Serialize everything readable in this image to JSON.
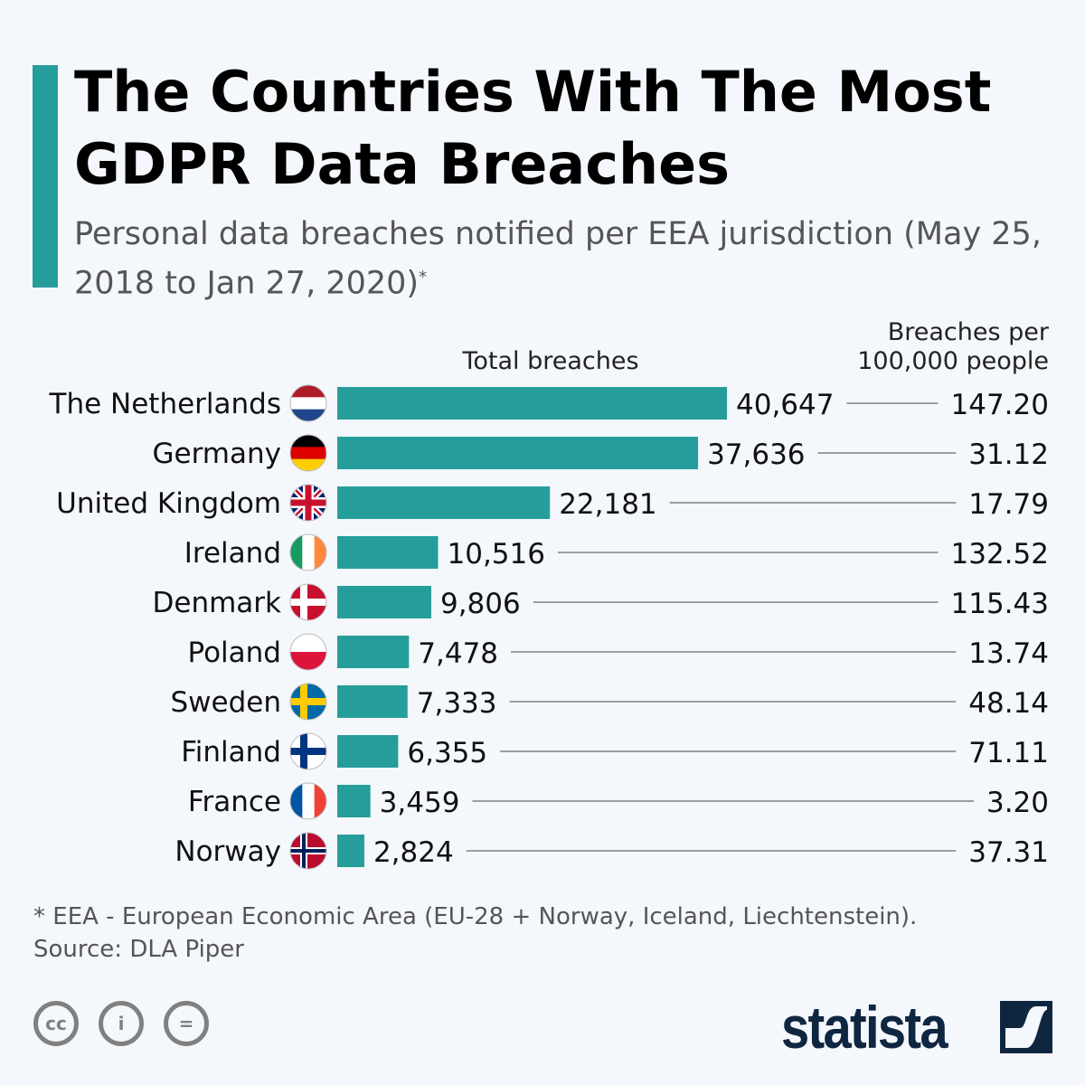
{
  "title": "The Countries With The Most GDPR Data Breaches",
  "subtitle": "Personal data breaches notified per EEA jurisdiction (May 25, 2018 to Jan 27, 2020)",
  "subtitle_mark": "*",
  "chart_data": {
    "type": "bar",
    "orientation": "horizontal",
    "column_headers": {
      "bars": "Total breaches",
      "right_line1": "Breaches per",
      "right_line2": "100,000 people"
    },
    "categories": [
      "The Netherlands",
      "Germany",
      "United Kingdom",
      "Ireland",
      "Denmark",
      "Poland",
      "Sweden",
      "Finland",
      "France",
      "Norway"
    ],
    "series": [
      {
        "name": "Total breaches",
        "values": [
          40647,
          37636,
          22181,
          10516,
          9806,
          7478,
          7333,
          6355,
          3459,
          2824
        ],
        "labels": [
          "40,647",
          "37,636",
          "22,181",
          "10,516",
          "9,806",
          "7,478",
          "7,333",
          "6,355",
          "3,459",
          "2,824"
        ]
      },
      {
        "name": "Breaches per 100,000 people",
        "values": [
          147.2,
          31.12,
          17.79,
          132.52,
          115.43,
          13.74,
          48.14,
          71.11,
          3.2,
          37.31
        ],
        "labels": [
          "147.20",
          "31.12",
          "17.79",
          "132.52",
          "115.43",
          "13.74",
          "48.14",
          "71.11",
          "3.20",
          "37.31"
        ]
      }
    ],
    "flags": [
      "nl-flag-icon",
      "de-flag-icon",
      "gb-flag-icon",
      "ie-flag-icon",
      "dk-flag-icon",
      "pl-flag-icon",
      "se-flag-icon",
      "fi-flag-icon",
      "fr-flag-icon",
      "no-flag-icon"
    ],
    "bar_color": "#259e9b",
    "xlim": [
      0,
      40647
    ]
  },
  "footnote": "* EEA - European Economic Area (EU-28 + Norway, Iceland, Liechtenstein).",
  "source": "Source: DLA Piper",
  "license_icons": [
    "cc-icon",
    "by-icon",
    "nd-icon"
  ],
  "logo": "statista"
}
